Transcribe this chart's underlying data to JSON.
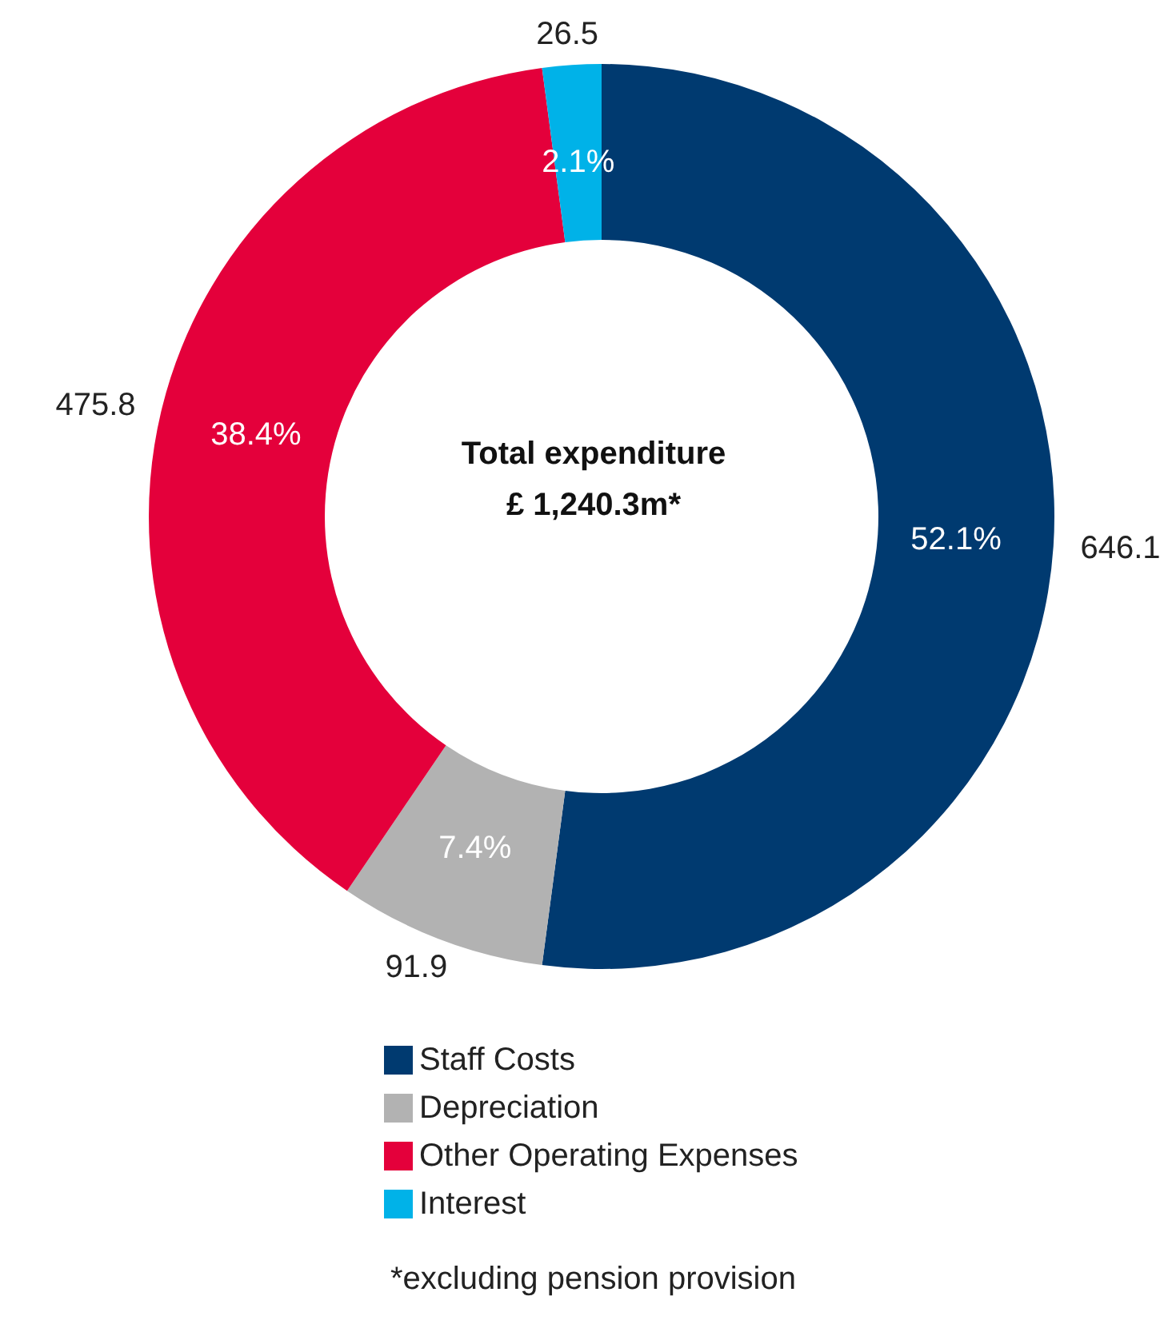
{
  "chart_data": {
    "type": "donut",
    "title": "Total expenditure",
    "subtitle": "£ 1,240.3m*",
    "categories": [
      "Staff Costs",
      "Depreciation",
      "Other Operating Expenses",
      "Interest"
    ],
    "values": [
      52.1,
      7.4,
      38.4,
      2.1
    ],
    "value_labels": [
      "52.1%",
      "7.4%",
      "38.4%",
      "2.1%"
    ],
    "colors": [
      "#003a70",
      "#b2b2b2",
      "#e4003b",
      "#00b2e8"
    ],
    "legend": "bottom",
    "annotations": [
      {
        "text": "646.1",
        "x": "Staff Costs"
      },
      {
        "text": "91.9",
        "x": "Depreciation"
      },
      {
        "text": "475.8",
        "x": "Other Operating Expenses"
      },
      {
        "text": "26.5",
        "x": "Interest"
      },
      "*excluding pension provision"
    ]
  }
}
